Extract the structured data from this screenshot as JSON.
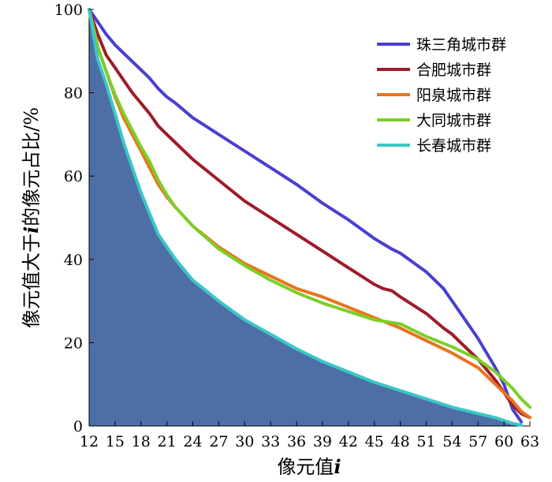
{
  "chart_data": {
    "type": "line",
    "xlabel": "像元值",
    "xlabel_var": "i",
    "ylabel": "像元值大于",
    "ylabel_var": "i",
    "ylabel_suffix": "的像元占比/%",
    "xlim": [
      12,
      63
    ],
    "ylim": [
      0,
      100
    ],
    "xticks": [
      "12",
      "15",
      "18",
      "21",
      "24",
      "27",
      "30",
      "33",
      "36",
      "39",
      "42",
      "45",
      "48",
      "51",
      "54",
      "57",
      "60",
      "63"
    ],
    "yticks": [
      "0",
      "20",
      "40",
      "60",
      "80",
      "100"
    ],
    "legend_position": "top-right",
    "grid": false,
    "fill_color": "#4d6fa6",
    "series": [
      {
        "name": "珠三角城市群",
        "color": "#4a3fd1",
        "x": [
          12,
          13,
          14,
          15,
          16,
          17,
          18,
          19,
          20,
          21,
          22,
          24,
          27,
          30,
          33,
          36,
          39,
          42,
          45,
          47,
          48,
          51,
          53,
          54,
          56,
          57,
          59,
          60,
          61,
          62
        ],
        "y": [
          100,
          97,
          94,
          91.5,
          89.5,
          87.5,
          85.5,
          83.5,
          81,
          79,
          77.5,
          74,
          70,
          66,
          62,
          58,
          53.5,
          49.5,
          45,
          42.5,
          41.5,
          37,
          33,
          30,
          24,
          21,
          14,
          10,
          4,
          1
        ]
      },
      {
        "name": "合肥城市群",
        "color": "#9e1c2a",
        "x": [
          12,
          13,
          14,
          15,
          16,
          17,
          18,
          19,
          20,
          21,
          22,
          24,
          27,
          30,
          33,
          36,
          39,
          42,
          45,
          46,
          47,
          48,
          51,
          53,
          54,
          55,
          57,
          59,
          61,
          62,
          63
        ],
        "y": [
          100,
          94,
          89,
          86,
          83,
          80,
          77.5,
          75,
          72,
          70,
          68,
          64,
          59,
          54,
          50,
          46,
          42,
          38,
          34,
          33,
          32.5,
          31,
          27,
          23.5,
          22,
          20,
          16,
          11,
          5,
          3,
          2
        ]
      },
      {
        "name": "阳泉城市群",
        "color": "#e8741e",
        "x": [
          12,
          13,
          14,
          15,
          16,
          17,
          18,
          19,
          20,
          21,
          22,
          24,
          27,
          30,
          33,
          36,
          39,
          42,
          45,
          48,
          51,
          54,
          57,
          59,
          61,
          62,
          63
        ],
        "y": [
          100,
          91,
          85,
          79,
          74,
          70,
          66,
          62,
          58,
          55,
          52.5,
          48,
          43,
          39,
          36,
          33,
          31,
          28.5,
          26,
          23.5,
          20.5,
          17.5,
          14,
          10,
          6,
          3.5,
          2
        ]
      },
      {
        "name": "大同城市群",
        "color": "#7dce28",
        "x": [
          12,
          13,
          14,
          15,
          16,
          17,
          18,
          19,
          20,
          21,
          22,
          24,
          27,
          30,
          33,
          36,
          39,
          42,
          45,
          48,
          51,
          54,
          57,
          59,
          61,
          62,
          63
        ],
        "y": [
          100,
          91,
          85,
          79.5,
          75,
          71,
          67,
          63.5,
          59,
          55.5,
          52.5,
          48,
          42.5,
          38.5,
          35,
          32,
          29.5,
          27.5,
          25.5,
          24.5,
          21.5,
          19,
          16,
          13,
          9,
          6.5,
          4.5
        ]
      },
      {
        "name": "长春城市群",
        "color": "#3cc6c6",
        "x": [
          12,
          13,
          14,
          15,
          16,
          17,
          18,
          19,
          20,
          21,
          22,
          24,
          27,
          30,
          33,
          36,
          39,
          42,
          45,
          48,
          51,
          54,
          57,
          59,
          61,
          62
        ],
        "y": [
          100,
          88,
          82,
          75,
          68,
          62,
          56,
          51,
          46,
          43,
          40,
          35,
          30,
          25.5,
          22,
          18.5,
          15.5,
          13,
          10.5,
          8.5,
          6.5,
          4.5,
          3,
          2,
          0.6,
          0.2
        ]
      }
    ]
  }
}
